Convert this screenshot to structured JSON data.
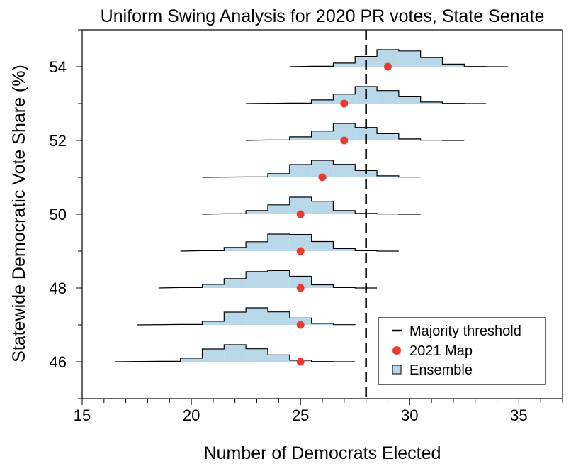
{
  "chart_data": {
    "type": "histogram-ridgeline",
    "title": "Uniform Swing Analysis for 2020 PR votes, State Senate",
    "xlabel": "Number of Democrats Elected",
    "ylabel": "Statewide Democratic Vote Share (%)",
    "xlim": [
      15,
      37
    ],
    "ylim": [
      45,
      55
    ],
    "xticks": [
      15,
      20,
      25,
      30,
      35
    ],
    "yticks": [
      46,
      48,
      50,
      52,
      54
    ],
    "majority_threshold": 28,
    "legend": {
      "position": "bottom-right",
      "entries": [
        "Majority threshold",
        "2021 Map",
        "Ensemble"
      ]
    },
    "colors": {
      "ensemble_fill": "#b8d8ea",
      "map_marker": "#ec3b2c",
      "line": "#000000"
    },
    "series": [
      {
        "vote_share": 46,
        "map_seats": 25,
        "range": [
          16.5,
          27.5
        ],
        "bins": [
          [
            18.5,
            19.5,
            0.02
          ],
          [
            19.5,
            20.5,
            0.17
          ],
          [
            20.5,
            21.5,
            0.6
          ],
          [
            21.5,
            22.5,
            0.8
          ],
          [
            22.5,
            23.5,
            0.61
          ],
          [
            23.5,
            24.5,
            0.32
          ],
          [
            24.5,
            25.5,
            0.07
          ],
          [
            25.5,
            26.5,
            0.01
          ]
        ]
      },
      {
        "vote_share": 47,
        "map_seats": 25,
        "range": [
          17.5,
          27.5
        ],
        "bins": [
          [
            19.5,
            20.5,
            0.02
          ],
          [
            20.5,
            21.5,
            0.17
          ],
          [
            21.5,
            22.5,
            0.6
          ],
          [
            22.5,
            23.5,
            0.8
          ],
          [
            23.5,
            24.5,
            0.61
          ],
          [
            24.5,
            25.5,
            0.32
          ],
          [
            25.5,
            26.5,
            0.07
          ],
          [
            26.5,
            27.5,
            0.01
          ]
        ]
      },
      {
        "vote_share": 48,
        "map_seats": 25,
        "range": [
          18.5,
          28.5
        ],
        "bins": [
          [
            19.5,
            20.5,
            0.02
          ],
          [
            20.5,
            21.5,
            0.17
          ],
          [
            21.5,
            22.5,
            0.44
          ],
          [
            22.5,
            23.5,
            0.77
          ],
          [
            23.5,
            24.5,
            0.82
          ],
          [
            24.5,
            25.5,
            0.55
          ],
          [
            25.5,
            26.5,
            0.15
          ],
          [
            26.5,
            27.5,
            0.02
          ]
        ]
      },
      {
        "vote_share": 49,
        "map_seats": 25,
        "range": [
          19.5,
          29.5
        ],
        "bins": [
          [
            20.5,
            21.5,
            0.02
          ],
          [
            21.5,
            22.5,
            0.17
          ],
          [
            22.5,
            23.5,
            0.44
          ],
          [
            23.5,
            24.5,
            0.8
          ],
          [
            24.5,
            25.5,
            0.78
          ],
          [
            25.5,
            26.5,
            0.45
          ],
          [
            26.5,
            27.5,
            0.12
          ],
          [
            27.5,
            28.5,
            0.02
          ]
        ]
      },
      {
        "vote_share": 50,
        "map_seats": 25,
        "range": [
          20.5,
          30.5
        ],
        "bins": [
          [
            21.5,
            22.5,
            0.02
          ],
          [
            22.5,
            23.5,
            0.17
          ],
          [
            23.5,
            24.5,
            0.44
          ],
          [
            24.5,
            25.5,
            0.8
          ],
          [
            25.5,
            26.5,
            0.61
          ],
          [
            26.5,
            27.5,
            0.17
          ],
          [
            27.5,
            28.5,
            0.04
          ],
          [
            28.5,
            29.5,
            0.01
          ]
        ]
      },
      {
        "vote_share": 51,
        "map_seats": 26,
        "range": [
          20.5,
          30.5
        ],
        "bins": [
          [
            22.5,
            23.5,
            0.02
          ],
          [
            23.5,
            24.5,
            0.17
          ],
          [
            24.5,
            25.5,
            0.6
          ],
          [
            25.5,
            26.5,
            0.8
          ],
          [
            26.5,
            27.5,
            0.61
          ],
          [
            27.5,
            28.5,
            0.32
          ],
          [
            28.5,
            29.5,
            0.07
          ],
          [
            29.5,
            30.5,
            0.01
          ]
        ]
      },
      {
        "vote_share": 52,
        "map_seats": 27,
        "range": [
          22.5,
          32.5
        ],
        "bins": [
          [
            23.5,
            24.5,
            0.02
          ],
          [
            24.5,
            25.5,
            0.17
          ],
          [
            25.5,
            26.5,
            0.44
          ],
          [
            26.5,
            27.5,
            0.8
          ],
          [
            27.5,
            28.5,
            0.61
          ],
          [
            28.5,
            29.5,
            0.32
          ],
          [
            29.5,
            30.5,
            0.07
          ],
          [
            30.5,
            31.5,
            0.01
          ]
        ]
      },
      {
        "vote_share": 53,
        "map_seats": 27,
        "range": [
          22.5,
          33.5
        ],
        "bins": [
          [
            24.5,
            25.5,
            0.02
          ],
          [
            25.5,
            26.5,
            0.17
          ],
          [
            26.5,
            27.5,
            0.44
          ],
          [
            27.5,
            28.5,
            0.8
          ],
          [
            28.5,
            29.5,
            0.61
          ],
          [
            29.5,
            30.5,
            0.32
          ],
          [
            30.5,
            31.5,
            0.07
          ],
          [
            31.5,
            32.5,
            0.01
          ]
        ]
      },
      {
        "vote_share": 54,
        "map_seats": 29,
        "range": [
          24.5,
          34.5
        ],
        "bins": [
          [
            25.5,
            26.5,
            0.02
          ],
          [
            26.5,
            27.5,
            0.17
          ],
          [
            27.5,
            28.5,
            0.48
          ],
          [
            28.5,
            29.5,
            0.8
          ],
          [
            29.5,
            30.5,
            0.74
          ],
          [
            30.5,
            31.5,
            0.43
          ],
          [
            31.5,
            32.5,
            0.12
          ],
          [
            32.5,
            33.5,
            0.01
          ]
        ]
      }
    ]
  }
}
